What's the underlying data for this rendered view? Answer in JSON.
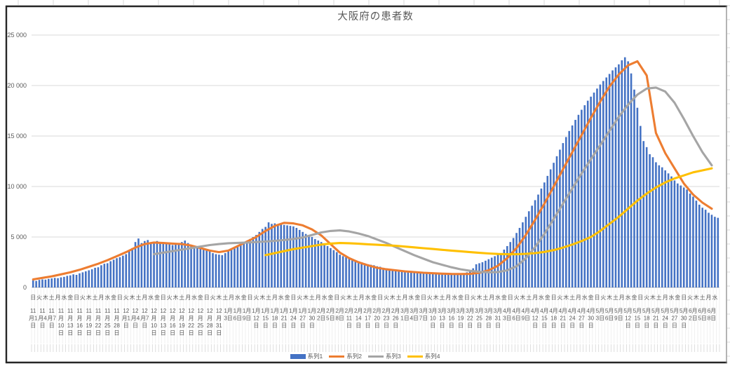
{
  "frame": {
    "border_dark": "#262626",
    "border_light": "#8c8c8c",
    "sheet_tick_color": "#d9d9d9",
    "background": "#ffffff"
  },
  "chart_data": {
    "type": "combo",
    "title": "大阪府の患者数",
    "title_color": "#595959",
    "ylim": [
      0,
      25000
    ],
    "ytick_step": 5000,
    "y_ticks": [
      {
        "value": 0,
        "label": "0"
      },
      {
        "value": 5000,
        "label": "5 000"
      },
      {
        "value": 10000,
        "label": "10 000"
      },
      {
        "value": 15000,
        "label": "15 000"
      },
      {
        "value": 20000,
        "label": "20 000"
      },
      {
        "value": 25000,
        "label": "25 000"
      }
    ],
    "grid": "horizontal",
    "grid_color": "#d9d9d9",
    "axis_line_color": "#bfbfbf",
    "axis_label_color": "#595959",
    "legend_position": "bottom",
    "x_axis": {
      "date_label_interval_days": 3,
      "weekday_label_interval_days": 2,
      "date_labels": [
        "11月1日",
        "11月4日",
        "11月7日",
        "11月10日",
        "11月13日",
        "11月16日",
        "11月19日",
        "11月22日",
        "11月25日",
        "11月28日",
        "12月1日",
        "12月4日",
        "12月7日",
        "12月10日",
        "12月13日",
        "12月16日",
        "12月19日",
        "12月22日",
        "12月25日",
        "12月28日",
        "12月31日",
        "1月3日",
        "1月6日",
        "1月9日",
        "1月12日",
        "1月15日",
        "1月18日",
        "1月21日",
        "1月24日",
        "1月27日",
        "1月30日",
        "2月2日",
        "2月5日",
        "2月8日",
        "2月11日",
        "2月14日",
        "2月17日",
        "2月20日",
        "2月23日",
        "2月26日",
        "3月1日",
        "3月4日",
        "3月7日",
        "3月10日",
        "3月13日",
        "3月16日",
        "3月19日",
        "3月22日",
        "3月25日",
        "3月28日",
        "3月31日",
        "4月3日",
        "4月6日",
        "4月9日",
        "4月12日",
        "4月15日",
        "4月18日",
        "4月21日",
        "4月24日",
        "4月27日",
        "4月30日",
        "5月3日",
        "5月6日",
        "5月9日",
        "5月12日",
        "5月15日",
        "5月18日",
        "5月21日",
        "5月24日",
        "5月27日",
        "5月30日",
        "6月2日",
        "6月5日",
        "6月8日"
      ],
      "weekday_labels": "日火木土月水金日火木土月水金日火木土月水金日火木土月水金日火木土月水金日火木土月水金日火木土月水金日火木土月水金日火木土月水金日火木土月水金日火木土月水金日火木土月水金日火木土月水金日火木土月水金日火木土月水金日火木土月水"
    },
    "series": [
      {
        "name": "系列1",
        "type": "bar",
        "color": "#4472C4",
        "sampling": "daily",
        "values": [
          700,
          650,
          750,
          800,
          780,
          850,
          900,
          950,
          920,
          1000,
          1050,
          1150,
          1200,
          1300,
          1250,
          1400,
          1500,
          1600,
          1700,
          1800,
          1950,
          2000,
          2200,
          2350,
          2400,
          2600,
          2750,
          2900,
          3000,
          3150,
          3300,
          3600,
          3900,
          4500,
          4850,
          4400,
          4600,
          4700,
          4400,
          4500,
          4600,
          4350,
          4500,
          4300,
          4450,
          4200,
          4350,
          4400,
          4500,
          4650,
          4400,
          4200,
          4000,
          4100,
          3900,
          3800,
          3700,
          3600,
          3400,
          3300,
          3250,
          3200,
          3400,
          3600,
          3800,
          4000,
          4150,
          4300,
          4400,
          4500,
          4800,
          5000,
          5200,
          5500,
          5800,
          6000,
          6450,
          6300,
          6350,
          6200,
          6250,
          6200,
          6150,
          6100,
          6050,
          5900,
          5700,
          5500,
          5300,
          5100,
          5000,
          4800,
          4650,
          4500,
          4300,
          4100,
          3900,
          3700,
          3500,
          3250,
          3100,
          3000,
          2900,
          2800,
          2700,
          2600,
          2500,
          2400,
          2300,
          2250,
          2200,
          2100,
          2050,
          1950,
          1900,
          1850,
          1800,
          1750,
          1700,
          1650,
          1600,
          1550,
          1500,
          1480,
          1450,
          1420,
          1400,
          1380,
          1360,
          1350,
          1340,
          1320,
          1300,
          1320,
          1300,
          1320,
          1340,
          1360,
          1380,
          1420,
          1500,
          1600,
          1900,
          2300,
          2400,
          2500,
          2650,
          2800,
          2950,
          3100,
          3250,
          3400,
          3750,
          4100,
          4500,
          4900,
          5400,
          5900,
          6450,
          7000,
          7550,
          8100,
          8650,
          9200,
          9800,
          10400,
          11050,
          11700,
          12350,
          13000,
          13650,
          14300,
          14900,
          15500,
          16050,
          16600,
          17100,
          17600,
          18050,
          18500,
          18900,
          19300,
          19700,
          20100,
          20450,
          20800,
          21150,
          21500,
          21800,
          22100,
          22500,
          22800,
          22400,
          21200,
          19600,
          17800,
          16000,
          14500,
          13900,
          13200,
          12900,
          12400,
          12100,
          11900,
          11600,
          11300,
          11000,
          10600,
          10300,
          10100,
          9900,
          9700,
          9300,
          9000,
          8600,
          8200,
          7900,
          7700,
          7400,
          7200,
          7000,
          6900
        ]
      },
      {
        "name": "系列2",
        "type": "line",
        "color": "#ED7D31",
        "sampling": "every_3_days",
        "values": [
          800,
          950,
          1100,
          1300,
          1500,
          1750,
          2050,
          2350,
          2700,
          3100,
          3500,
          3950,
          4300,
          4450,
          4400,
          4350,
          4300,
          4150,
          3900,
          3650,
          3500,
          3650,
          4100,
          4550,
          5000,
          5600,
          6100,
          6400,
          6350,
          6150,
          5750,
          5150,
          4300,
          3450,
          2900,
          2500,
          2200,
          1950,
          1800,
          1700,
          1600,
          1530,
          1460,
          1410,
          1370,
          1340,
          1330,
          1350,
          1450,
          1700,
          2150,
          2900,
          3900,
          5200,
          6700,
          8300,
          10000,
          11700,
          13400,
          15100,
          16800,
          18400,
          19900,
          21100,
          22000,
          22400,
          21000,
          15300,
          13300,
          11800,
          10300,
          9200,
          8400,
          7800
        ]
      },
      {
        "name": "系列3",
        "type": "line",
        "color": "#A5A5A5",
        "sampling": "every_3_days",
        "values": [
          null,
          null,
          null,
          null,
          null,
          null,
          null,
          null,
          null,
          null,
          null,
          null,
          null,
          3300,
          3450,
          3600,
          3750,
          3900,
          4050,
          4200,
          4300,
          4380,
          4420,
          4450,
          4500,
          4550,
          4620,
          4700,
          4800,
          4950,
          5200,
          5450,
          5600,
          5650,
          5550,
          5350,
          5100,
          4750,
          4400,
          4000,
          3600,
          3200,
          2850,
          2500,
          2250,
          2000,
          1800,
          1650,
          1550,
          1500,
          1520,
          1700,
          2100,
          2900,
          4000,
          5300,
          6800,
          8300,
          9800,
          11300,
          12700,
          14100,
          15500,
          16900,
          18100,
          19100,
          19700,
          19800,
          19400,
          18300,
          16700,
          15000,
          13400,
          12100
        ]
      },
      {
        "name": "系列4",
        "type": "line",
        "color": "#FFC000",
        "sampling": "every_3_days",
        "values": [
          null,
          null,
          null,
          null,
          null,
          null,
          null,
          null,
          null,
          null,
          null,
          null,
          null,
          null,
          null,
          null,
          null,
          null,
          null,
          null,
          null,
          null,
          null,
          null,
          null,
          3200,
          3400,
          3600,
          3800,
          3950,
          4100,
          4250,
          4350,
          4400,
          4380,
          4330,
          4280,
          4230,
          4180,
          4130,
          4050,
          3970,
          3890,
          3810,
          3730,
          3650,
          3580,
          3500,
          3430,
          3370,
          3320,
          3290,
          3290,
          3330,
          3400,
          3520,
          3700,
          3950,
          4250,
          4600,
          5000,
          5600,
          6300,
          7000,
          7800,
          8600,
          9300,
          9900,
          10400,
          10800,
          11100,
          11400,
          11600,
          11800
        ]
      }
    ]
  }
}
